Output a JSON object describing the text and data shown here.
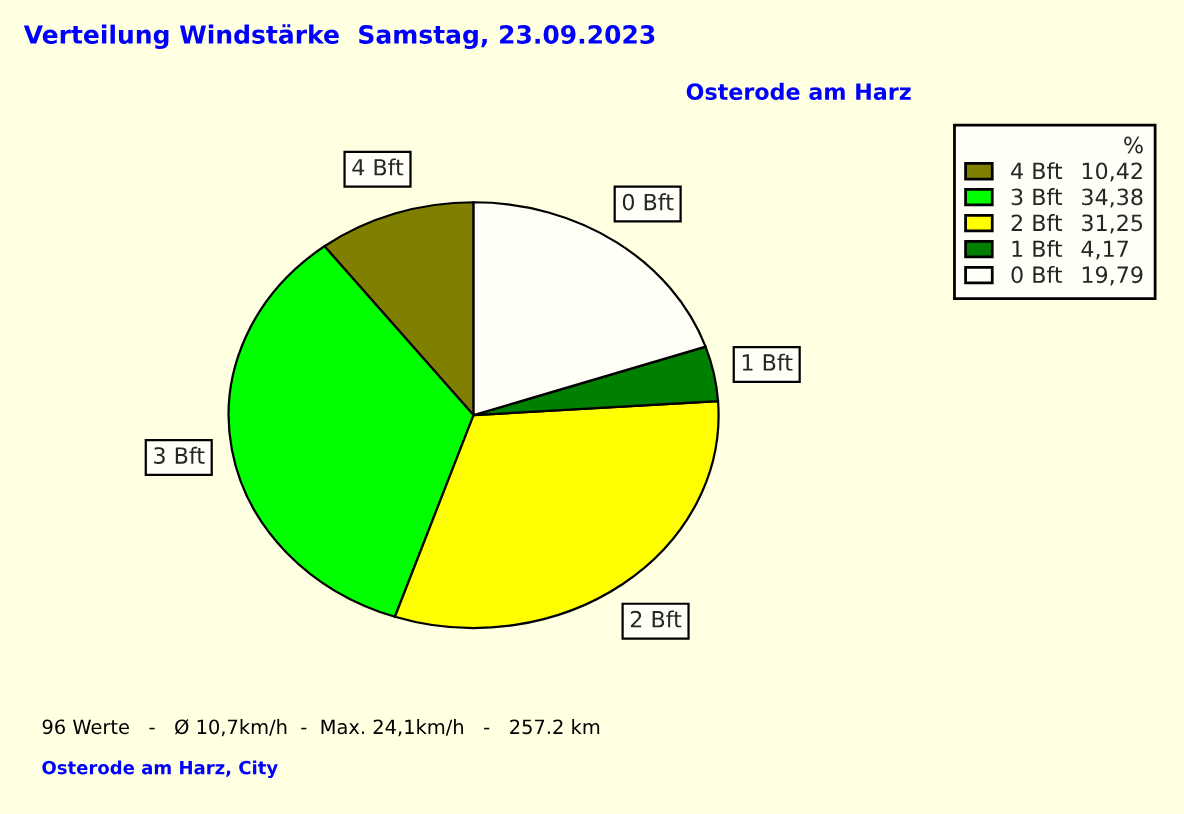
{
  "chart_data": {
    "type": "pie",
    "title": "Verteilung Windstärke  Samstag, 23.09.2023",
    "subtitle": "Osterode am Harz",
    "legend_title": "%",
    "categories": [
      "4 Bft",
      "3 Bft",
      "2 Bft",
      "1 Bft",
      "0 Bft"
    ],
    "values": [
      10.42,
      34.38,
      31.25,
      4.17,
      19.79
    ],
    "value_labels": [
      "10,42",
      "34,38",
      "31,25",
      "4,17",
      "19,79"
    ],
    "colors": [
      "#808000",
      "#00ff00",
      "#ffff00",
      "#008000",
      "#fffff8"
    ],
    "legend": "top right",
    "annotations": [
      "96 Werte   -   Ø 10,7km/h  -  Max. 24,1km/h   -   257.2 km",
      "Osterode am Harz, City"
    ]
  }
}
